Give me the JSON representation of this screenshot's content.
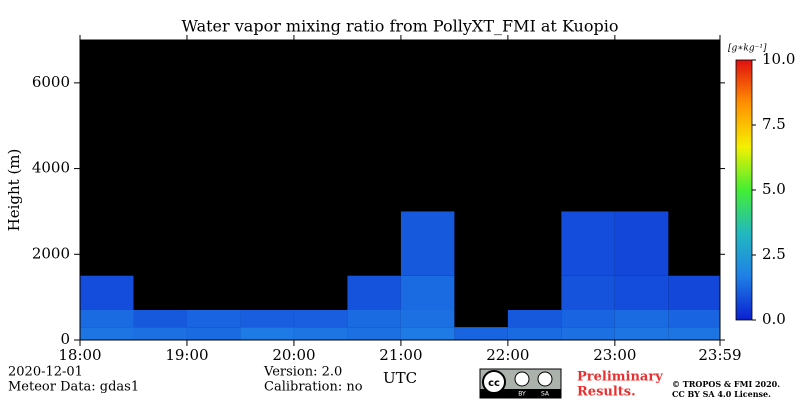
{
  "chart_data": {
    "type": "heatmap",
    "title": "Water vapor mixing ratio from PollyXT_FMI at Kuopio",
    "xlabel": "UTC",
    "ylabel": "Height (m)",
    "x_edges": [
      18,
      18.5,
      19,
      19.5,
      20,
      20.5,
      21,
      21.5,
      22,
      22.5,
      23,
      23.5,
      23.983
    ],
    "y_edges": [
      0,
      300,
      700,
      1500,
      3000
    ],
    "values": [
      [
        1.5,
        1.4,
        1.3,
        1.6,
        1.5,
        1.4,
        1.6,
        1.2,
        1.3,
        1.4,
        1.5,
        1.5
      ],
      [
        1.3,
        1.0,
        1.2,
        1.1,
        1.1,
        1.3,
        1.4,
        null,
        1.0,
        1.2,
        1.3,
        1.2
      ],
      [
        0.8,
        null,
        null,
        null,
        null,
        0.9,
        1.3,
        null,
        null,
        0.9,
        0.8,
        0.7
      ],
      [
        null,
        null,
        null,
        null,
        null,
        null,
        1.0,
        null,
        null,
        0.8,
        0.7,
        null
      ]
    ],
    "xlim": [
      18,
      23.983
    ],
    "xticks": [
      {
        "value": 18,
        "label": "18:00"
      },
      {
        "value": 19,
        "label": "19:00"
      },
      {
        "value": 20,
        "label": "20:00"
      },
      {
        "value": 21,
        "label": "21:00"
      },
      {
        "value": 22,
        "label": "22:00"
      },
      {
        "value": 23,
        "label": "23:00"
      },
      {
        "value": 23.983,
        "label": "23:59"
      }
    ],
    "ylim": [
      0,
      7000
    ],
    "yticks": [
      0,
      2000,
      4000,
      6000
    ],
    "background": "#000000",
    "colorbar_label": "[g∗kg⁻¹]",
    "clim": [
      0,
      10
    ],
    "cticks": [
      {
        "value": 0,
        "label": "0.0"
      },
      {
        "value": 2.5,
        "label": "2.5"
      },
      {
        "value": 5,
        "label": "5.0"
      },
      {
        "value": 7.5,
        "label": "7.5"
      },
      {
        "value": 10,
        "label": "10.0"
      }
    ],
    "colormap": [
      "#0a1fd0",
      "#1f7fe6",
      "#22b8c0",
      "#44ee33",
      "#f5f000",
      "#ff9000",
      "#e01010"
    ]
  },
  "footer": {
    "date": "2020-12-01",
    "meteor": "Meteor Data: gdas1",
    "version": "Version: 2.0",
    "calibration": "Calibration: no",
    "preliminary": [
      "Preliminary",
      "Results."
    ],
    "copyright": [
      "© TROPOS & FMI 2020.",
      "CC BY SA 4.0 License."
    ],
    "badge": [
      "cc",
      "BY",
      "SA"
    ]
  }
}
